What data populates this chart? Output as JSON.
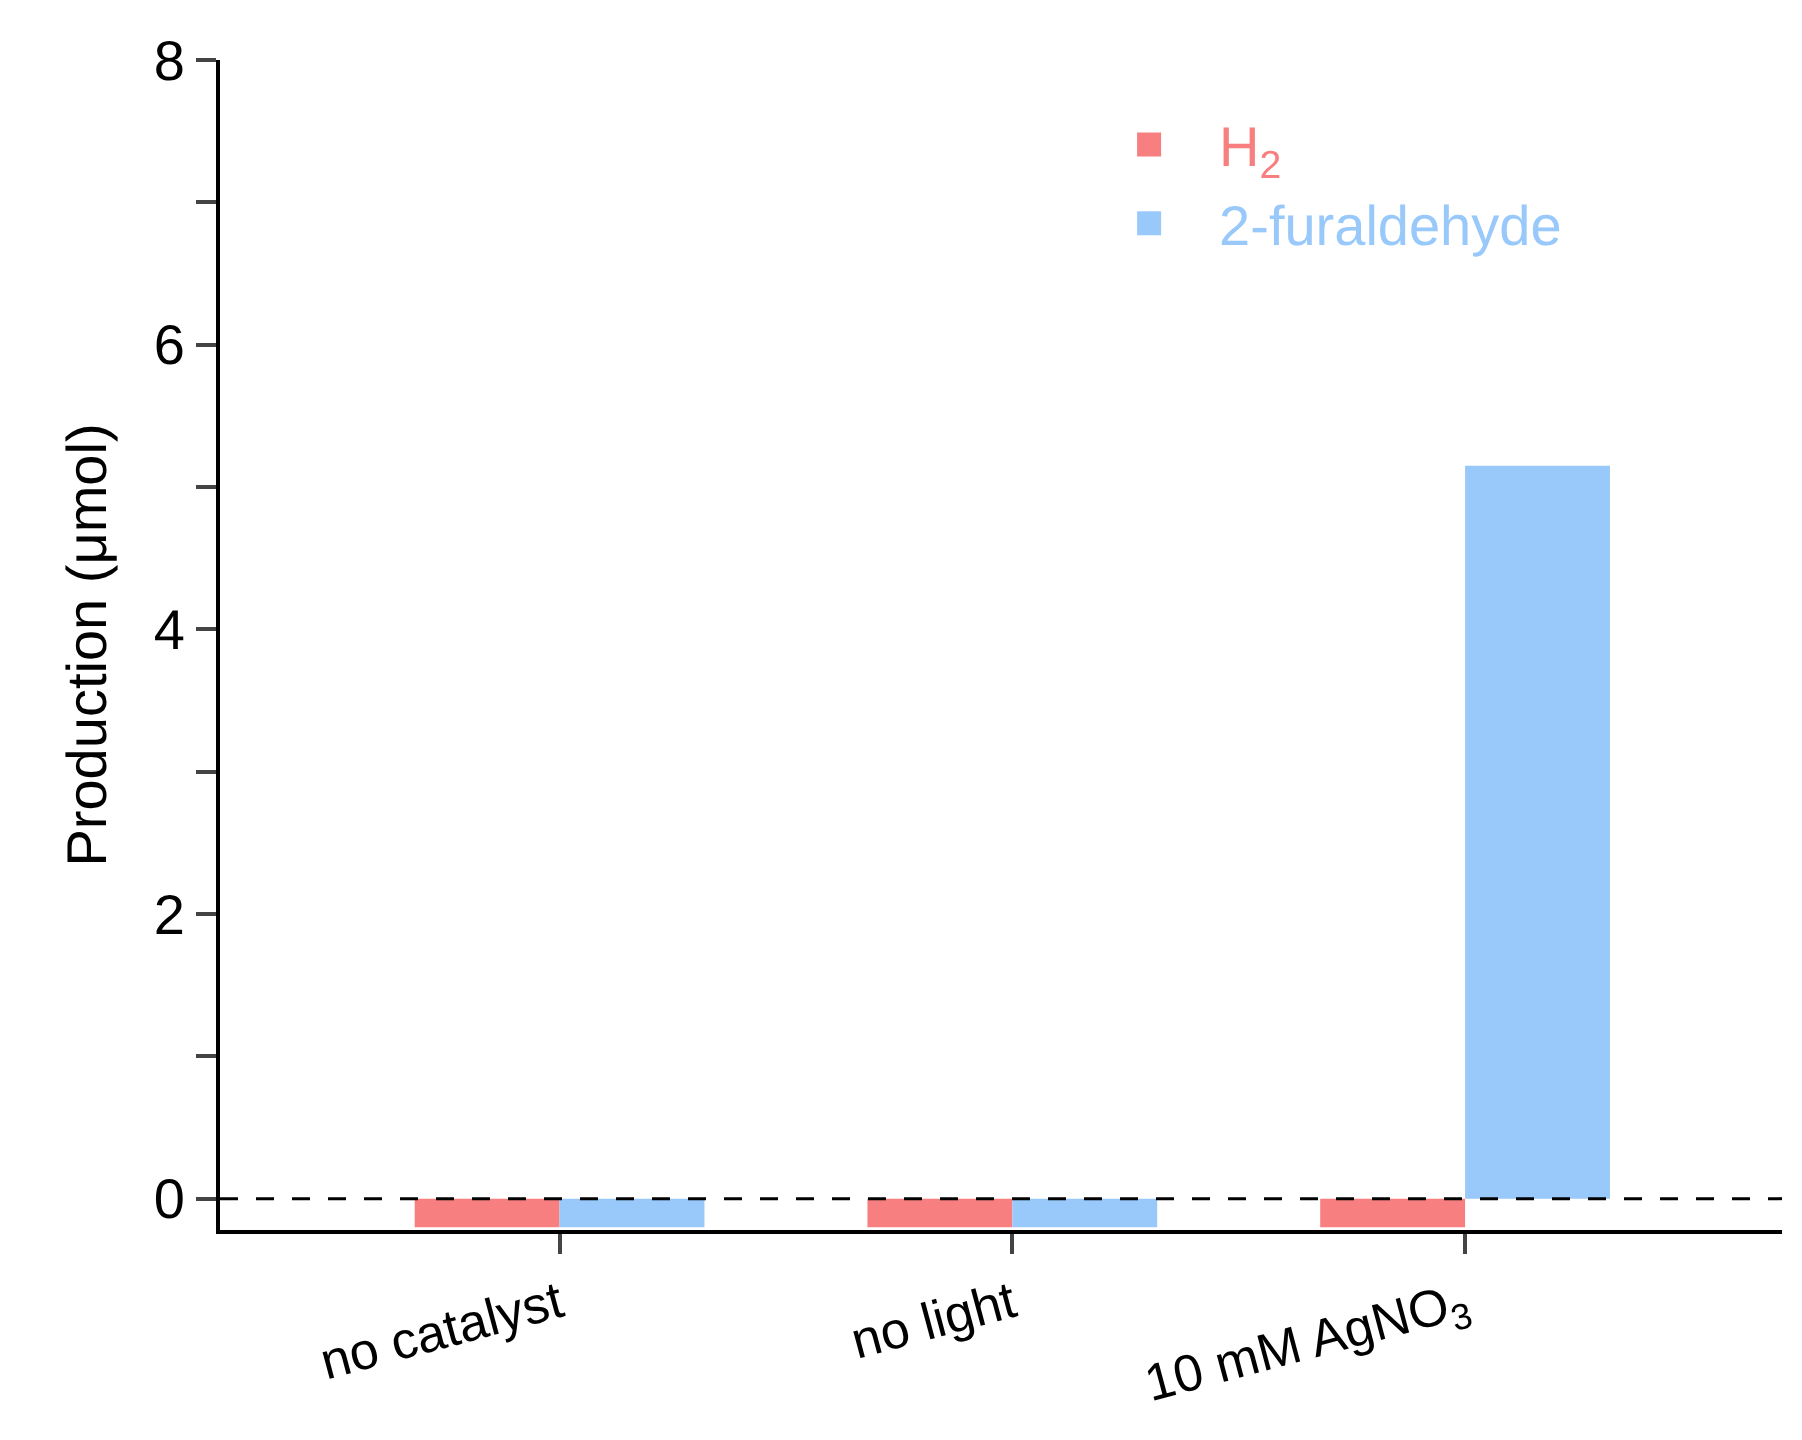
{
  "chart_data": {
    "type": "bar",
    "ylabel": "Production (μmol)",
    "categories": [
      "no catalyst",
      "no light",
      "10 mM AgNO$_{3}$"
    ],
    "series": [
      {
        "name": "H$_{2}$",
        "color": "#f77f7f",
        "values": [
          -0.2,
          -0.2,
          -0.2
        ]
      },
      {
        "name": "2-furaldehyde",
        "color": "#99c9fb",
        "values": [
          -0.2,
          -0.2,
          5.15
        ]
      }
    ],
    "ylim": [
      -0.22,
      8
    ],
    "yticks": [
      0,
      {
        "value": 1,
        "label": null
      },
      2,
      {
        "value": 3,
        "label": null
      },
      4,
      {
        "value": 5,
        "label": null
      },
      6,
      {
        "value": 7,
        "label": null
      },
      8
    ],
    "ref_lines": [
      {
        "axis": "y",
        "value": 0,
        "label": null,
        "color": "#000000",
        "line_style": "dashed"
      }
    ],
    "legend": "top right"
  }
}
